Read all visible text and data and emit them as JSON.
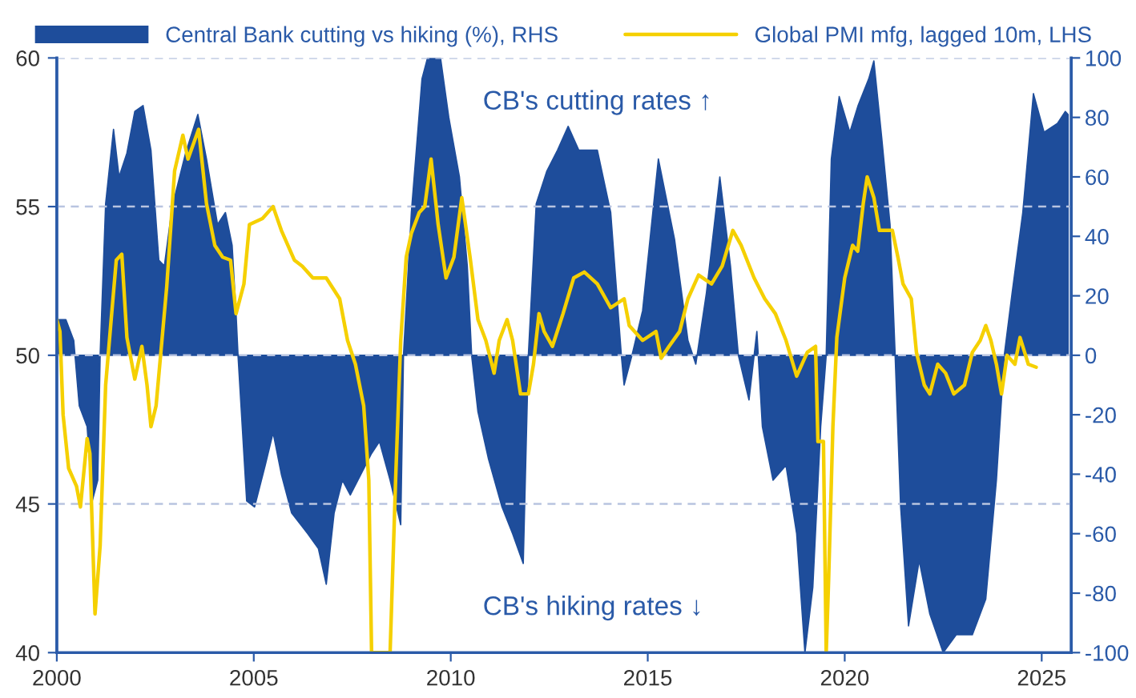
{
  "chart_data": {
    "type": "line",
    "xlim": [
      2000,
      2025.75
    ],
    "xticks": [
      2000,
      2005,
      2010,
      2015,
      2020,
      2025
    ],
    "ylim": [
      40,
      60
    ],
    "yticks": [
      40,
      45,
      50,
      55,
      60
    ],
    "y2lim": [
      -100,
      100
    ],
    "y2ticks": [
      -100,
      -80,
      -60,
      -40,
      -20,
      0,
      20,
      40,
      60,
      80,
      100
    ],
    "grid": "y",
    "legend": "top",
    "annotations": [
      "CB's cutting rates ↑",
      "CB's hiking rates ↓"
    ],
    "series": [
      {
        "name": "Central Bank cutting vs hiking (%), RHS",
        "type": "area",
        "axis": "y2",
        "color": "#1e4d9b",
        "x": [
          2000.0,
          2000.23,
          2000.43,
          2000.57,
          2000.77,
          2000.9,
          2001.04,
          2001.1,
          2001.24,
          2001.44,
          2001.58,
          2001.78,
          2001.98,
          2002.19,
          2002.39,
          2002.59,
          2002.73,
          2002.93,
          2003.27,
          2003.58,
          2003.8,
          2004.08,
          2004.28,
          2004.45,
          2004.55,
          2004.6,
          2004.82,
          2005.02,
          2005.29,
          2005.49,
          2005.7,
          2005.96,
          2006.37,
          2006.64,
          2006.84,
          2007.04,
          2007.25,
          2007.45,
          2007.72,
          2007.99,
          2008.19,
          2008.46,
          2008.73,
          2008.8,
          2009.0,
          2009.27,
          2009.41,
          2009.74,
          2009.95,
          2010.22,
          2010.42,
          2010.53,
          2010.69,
          2010.96,
          2011.3,
          2011.57,
          2011.84,
          2011.97,
          2012.17,
          2012.44,
          2012.71,
          2012.98,
          2013.25,
          2013.59,
          2013.72,
          2014.06,
          2014.33,
          2014.4,
          2014.6,
          2014.87,
          2015.27,
          2015.68,
          2016.02,
          2016.22,
          2016.49,
          2016.83,
          2017.1,
          2017.3,
          2017.57,
          2017.77,
          2017.91,
          2018.18,
          2018.51,
          2018.78,
          2018.99,
          2019.19,
          2019.39,
          2019.53,
          2019.66,
          2019.86,
          2020.13,
          2020.34,
          2020.61,
          2020.74,
          2020.94,
          2021.15,
          2021.28,
          2021.42,
          2021.62,
          2021.89,
          2022.16,
          2022.5,
          2022.83,
          2023.24,
          2023.58,
          2023.85,
          2024.05,
          2024.25,
          2024.52,
          2024.79,
          2025.06,
          2025.4,
          2025.6,
          2025.67
        ],
        "values": [
          12,
          12,
          5,
          -17,
          -24,
          -49,
          -42,
          0,
          51,
          76,
          60,
          68,
          82,
          84,
          69,
          32,
          30,
          50,
          68,
          81,
          66,
          44,
          48,
          37,
          14,
          0,
          -49,
          -51,
          -37,
          -26,
          -40,
          -53,
          -60,
          -65,
          -77,
          -53,
          -42,
          -47,
          -40,
          -33,
          -29,
          -42,
          -57,
          0,
          48,
          93,
          100,
          100,
          80,
          60,
          30,
          0,
          -19,
          -35,
          -51,
          -60,
          -70,
          0,
          51,
          62,
          69,
          77,
          69,
          69,
          69,
          48,
          0,
          -10,
          0,
          15,
          66,
          39,
          5,
          -3,
          21,
          60,
          30,
          0,
          -15,
          8,
          -24,
          -42,
          -37,
          -60,
          -100,
          -78,
          -24,
          0,
          66,
          87,
          75,
          84,
          93,
          99,
          73,
          44,
          0,
          -51,
          -91,
          -69,
          -87,
          -100,
          -94,
          -94,
          -82,
          -42,
          0,
          21,
          48,
          88,
          75,
          78,
          82,
          81
        ]
      },
      {
        "name": "Global PMI mfg, lagged 10m, LHS",
        "axis": "y",
        "color": "#f5d000",
        "x": [
          2000.0,
          2000.08,
          2000.16,
          2000.3,
          2000.5,
          2000.6,
          2000.77,
          2000.84,
          2000.97,
          2001.1,
          2001.24,
          2001.38,
          2001.51,
          2001.65,
          2001.78,
          2001.98,
          2002.16,
          2002.29,
          2002.39,
          2002.52,
          2002.79,
          2002.99,
          2003.2,
          2003.33,
          2003.6,
          2003.8,
          2004.01,
          2004.21,
          2004.41,
          2004.55,
          2004.75,
          2004.89,
          2005.22,
          2005.49,
          2005.7,
          2006.03,
          2006.23,
          2006.5,
          2006.84,
          2007.18,
          2007.38,
          2007.58,
          2007.79,
          2007.92,
          2007.99,
          2008.46,
          2008.6,
          2008.73,
          2008.87,
          2009.0,
          2009.2,
          2009.34,
          2009.5,
          2009.68,
          2009.88,
          2010.08,
          2010.28,
          2010.49,
          2010.69,
          2010.89,
          2011.1,
          2011.23,
          2011.43,
          2011.57,
          2011.77,
          2011.97,
          2012.1,
          2012.24,
          2012.37,
          2012.58,
          2012.85,
          2013.12,
          2013.39,
          2013.72,
          2014.06,
          2014.4,
          2014.53,
          2014.87,
          2015.21,
          2015.34,
          2015.54,
          2015.81,
          2016.02,
          2016.29,
          2016.62,
          2016.89,
          2017.16,
          2017.37,
          2017.7,
          2017.97,
          2018.24,
          2018.51,
          2018.78,
          2019.05,
          2019.26,
          2019.32,
          2019.46,
          2019.53,
          2019.59,
          2019.7,
          2019.8,
          2020.0,
          2020.2,
          2020.33,
          2020.47,
          2020.57,
          2020.74,
          2020.88,
          2021.21,
          2021.35,
          2021.48,
          2021.69,
          2021.82,
          2022.02,
          2022.16,
          2022.36,
          2022.56,
          2022.77,
          2023.04,
          2023.24,
          2023.44,
          2023.58,
          2023.71,
          2023.85,
          2023.98,
          2024.12,
          2024.32,
          2024.45,
          2024.66,
          2024.86
        ],
        "values": [
          51.2,
          50.8,
          48.0,
          46.2,
          45.6,
          44.9,
          47.2,
          46.7,
          41.3,
          43.6,
          49.0,
          51.2,
          53.2,
          53.4,
          50.6,
          49.2,
          50.3,
          49.0,
          47.6,
          48.3,
          52.3,
          56.2,
          57.4,
          56.6,
          57.6,
          55.1,
          53.7,
          53.3,
          53.2,
          51.4,
          52.4,
          54.4,
          54.6,
          55.0,
          54.2,
          53.2,
          53.0,
          52.6,
          52.6,
          51.9,
          50.5,
          49.7,
          48.3,
          45.8,
          40,
          40,
          45.8,
          50.5,
          53.3,
          54.1,
          54.8,
          55.0,
          56.6,
          54.4,
          52.6,
          53.3,
          55.3,
          53.3,
          51.2,
          50.5,
          49.4,
          50.5,
          51.2,
          50.5,
          48.7,
          48.7,
          49.7,
          51.4,
          50.8,
          50.3,
          51.4,
          52.6,
          52.8,
          52.4,
          51.6,
          51.9,
          51.0,
          50.5,
          50.8,
          49.9,
          50.3,
          50.8,
          51.9,
          52.7,
          52.4,
          53.0,
          54.2,
          53.7,
          52.6,
          51.9,
          51.4,
          50.5,
          49.3,
          50.1,
          50.3,
          47.1,
          47.1,
          40,
          42.4,
          47.6,
          50.6,
          52.6,
          53.7,
          53.5,
          55.1,
          56.0,
          55.3,
          54.2,
          54.2,
          53.3,
          52.4,
          51.9,
          50.1,
          49.0,
          48.7,
          49.7,
          49.4,
          48.7,
          49.0,
          50.1,
          50.5,
          51.0,
          50.5,
          49.7,
          48.7,
          50.0,
          49.7,
          50.6,
          49.7,
          49.6
        ]
      }
    ]
  }
}
